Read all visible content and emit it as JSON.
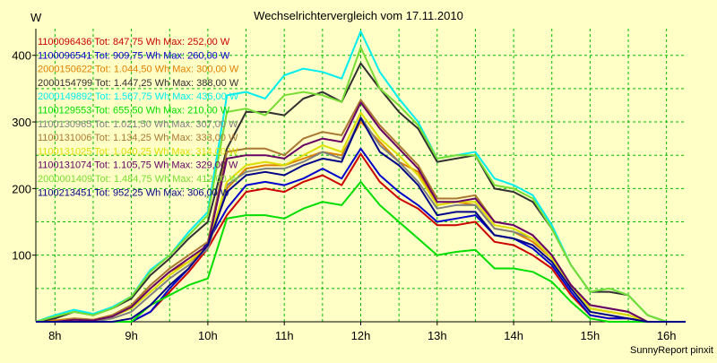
{
  "chart_data": {
    "type": "line",
    "title": "Wechselrichtervergleich vom 17.11.2010",
    "ylabel": "W",
    "xlabel": "",
    "footer": "SunnyReport pinxit",
    "x_ticks": [
      "8h",
      "9h",
      "10h",
      "11h",
      "12h",
      "13h",
      "14h",
      "15h",
      "16h"
    ],
    "x_tick_values": [
      8,
      9,
      10,
      11,
      12,
      13,
      14,
      15,
      16
    ],
    "y_ticks": [
      "100",
      "200",
      "300",
      "400"
    ],
    "y_tick_values": [
      100,
      200,
      300,
      400
    ],
    "xlim": [
      7.75,
      16.25
    ],
    "ylim": [
      0,
      440
    ],
    "grid": true,
    "legend_position": "top-left",
    "x": [
      7.75,
      8.0,
      8.25,
      8.5,
      8.75,
      9.0,
      9.25,
      9.5,
      9.75,
      10.0,
      10.25,
      10.5,
      10.75,
      11.0,
      11.25,
      11.5,
      11.75,
      12.0,
      12.25,
      12.5,
      12.75,
      13.0,
      13.25,
      13.5,
      13.75,
      14.0,
      14.25,
      14.5,
      14.75,
      15.0,
      15.25,
      15.5,
      15.75,
      16.0,
      16.25
    ],
    "series": [
      {
        "name": "1100096436",
        "legend": "1100096436 Tot: 847,75 Wh Max: 252,00 W",
        "color": "#cc0000",
        "values": [
          0,
          0,
          0,
          0,
          0,
          0,
          15,
          45,
          75,
          110,
          160,
          195,
          200,
          195,
          210,
          220,
          205,
          252,
          210,
          185,
          170,
          145,
          145,
          150,
          120,
          115,
          100,
          80,
          40,
          10,
          5,
          5,
          0,
          0,
          0
        ]
      },
      {
        "name": "1100096541",
        "legend": "1100096541 Tot: 909,75 Wh Max: 260,00 W",
        "color": "#0000cc",
        "values": [
          0,
          0,
          0,
          0,
          0,
          0,
          15,
          50,
          80,
          120,
          170,
          205,
          210,
          205,
          215,
          230,
          215,
          260,
          220,
          195,
          175,
          150,
          155,
          160,
          130,
          125,
          110,
          85,
          45,
          10,
          5,
          5,
          0,
          0,
          0
        ]
      },
      {
        "name": "2000150622",
        "legend": "2000150622 Tot: 1.044,50 Wh Max: 300,00 W",
        "color": "#e08000",
        "values": [
          0,
          2,
          5,
          3,
          10,
          25,
          50,
          75,
          90,
          110,
          200,
          230,
          235,
          235,
          245,
          255,
          250,
          300,
          270,
          240,
          225,
          175,
          180,
          175,
          140,
          135,
          120,
          95,
          55,
          20,
          15,
          10,
          0,
          0,
          0
        ]
      },
      {
        "name": "2000154799",
        "legend": "2000154799 Tot: 1.447,25 Wh Max: 388,00 W",
        "color": "#303030",
        "values": [
          0,
          5,
          15,
          10,
          20,
          35,
          70,
          95,
          125,
          150,
          260,
          315,
          315,
          310,
          335,
          345,
          330,
          388,
          350,
          315,
          290,
          240,
          245,
          250,
          200,
          195,
          180,
          140,
          85,
          45,
          45,
          40,
          10,
          0,
          0
        ]
      },
      {
        "name": "2000149892",
        "legend": "2000149892 Tot: 1.567,75 Wh Max: 436,00 W",
        "color": "#00eeee",
        "values": [
          0,
          10,
          18,
          12,
          22,
          38,
          78,
          100,
          135,
          165,
          340,
          345,
          335,
          370,
          380,
          375,
          365,
          436,
          375,
          335,
          300,
          245,
          250,
          255,
          215,
          205,
          190,
          145,
          85,
          45,
          50,
          40,
          10,
          0,
          0
        ]
      },
      {
        "name": "1100129553",
        "legend": "1100129553 Tot: 655,50 Wh Max: 210,00 W",
        "color": "#00dd00",
        "values": [
          0,
          0,
          0,
          0,
          0,
          0,
          25,
          40,
          55,
          65,
          155,
          160,
          160,
          155,
          170,
          180,
          175,
          210,
          175,
          150,
          125,
          100,
          105,
          108,
          80,
          80,
          75,
          60,
          30,
          5,
          0,
          0,
          0,
          0,
          0
        ]
      },
      {
        "name": "1100130965",
        "legend": "1100130965 Tot: 1.021,50 Wh Max: 307,00 W",
        "color": "#808080",
        "values": [
          0,
          0,
          0,
          0,
          5,
          15,
          40,
          65,
          85,
          110,
          205,
          225,
          230,
          230,
          240,
          255,
          245,
          307,
          265,
          240,
          210,
          170,
          175,
          175,
          140,
          135,
          125,
          95,
          55,
          20,
          15,
          10,
          0,
          0,
          0
        ]
      },
      {
        "name": "1100131006",
        "legend": "1100131006 Tot: 1.134,25 Wh Max: 333,00 W",
        "color": "#aa7733",
        "values": [
          0,
          0,
          5,
          3,
          10,
          25,
          55,
          80,
          100,
          120,
          255,
          260,
          260,
          250,
          275,
          285,
          280,
          333,
          295,
          265,
          235,
          185,
          185,
          190,
          150,
          145,
          130,
          100,
          55,
          25,
          20,
          15,
          0,
          0,
          0
        ]
      },
      {
        "name": "1100131025",
        "legend": "1100131025 Tot: 1.040,25 Wh Max: 314,00 W",
        "color": "#dddd00",
        "values": [
          0,
          0,
          3,
          2,
          8,
          20,
          45,
          70,
          90,
          115,
          210,
          235,
          240,
          235,
          250,
          265,
          255,
          314,
          275,
          250,
          220,
          175,
          180,
          180,
          145,
          140,
          125,
          95,
          55,
          20,
          15,
          10,
          0,
          0,
          0
        ]
      },
      {
        "name": "1100131074",
        "legend": "1100131074 Tot: 1.105,75 Wh Max: 329,00 W",
        "color": "#660066",
        "values": [
          0,
          0,
          3,
          2,
          8,
          22,
          50,
          75,
          95,
          115,
          245,
          250,
          250,
          245,
          265,
          275,
          270,
          329,
          290,
          260,
          230,
          180,
          180,
          185,
          150,
          145,
          130,
          100,
          55,
          25,
          20,
          15,
          0,
          0,
          0
        ]
      },
      {
        "name": "2000001409",
        "legend": "2000001409 Tot: 1.484,75 Wh Max: 412,00 W",
        "color": "#77dd33",
        "values": [
          0,
          8,
          15,
          10,
          20,
          38,
          75,
          100,
          130,
          160,
          315,
          320,
          310,
          340,
          345,
          340,
          330,
          412,
          350,
          325,
          295,
          245,
          250,
          250,
          205,
          200,
          185,
          140,
          85,
          45,
          50,
          40,
          10,
          0,
          0
        ]
      },
      {
        "name": "1100213451",
        "legend": "1100213451 Tot: 952,25 Wh Max: 306,00 W",
        "color": "#000088",
        "values": [
          0,
          0,
          0,
          0,
          0,
          5,
          25,
          55,
          80,
          115,
          195,
          220,
          225,
          220,
          235,
          245,
          240,
          306,
          255,
          235,
          205,
          160,
          165,
          165,
          130,
          125,
          115,
          90,
          50,
          15,
          10,
          5,
          0,
          0,
          0
        ]
      }
    ]
  }
}
